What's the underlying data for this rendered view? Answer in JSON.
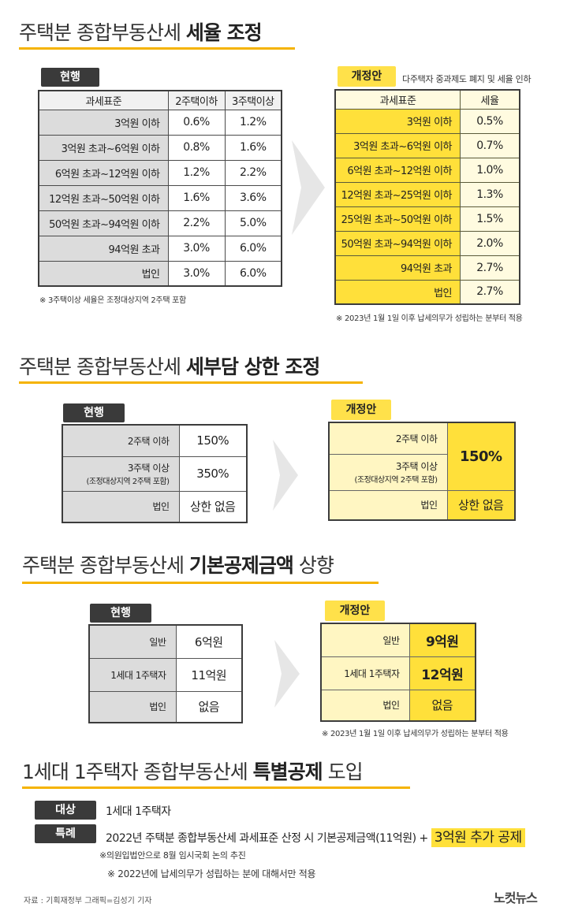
{
  "section1": {
    "title_plain": "주택분 종합부동산세 ",
    "title_bold": "세율 조정",
    "current_label": "현행",
    "proposal_label": "개정안",
    "proposal_desc": "다주택자 중과제도 폐지 및 세율 인하",
    "current_headers": [
      "과세표준",
      "2주택이하",
      "3주택이상"
    ],
    "current_rows": [
      [
        "3억원 이하",
        "0.6%",
        "1.2%"
      ],
      [
        "3억원 초과~6억원 이하",
        "0.8%",
        "1.6%"
      ],
      [
        "6억원 초과~12억원 이하",
        "1.2%",
        "2.2%"
      ],
      [
        "12억원 초과~50억원 이하",
        "1.6%",
        "3.6%"
      ],
      [
        "50억원 초과~94억원 이하",
        "2.2%",
        "5.0%"
      ],
      [
        "94억원 초과",
        "3.0%",
        "6.0%"
      ],
      [
        "법인",
        "3.0%",
        "6.0%"
      ]
    ],
    "current_note": "※ 3주택이상 세율은 조정대상지역 2주택 포함",
    "proposal_headers": [
      "과세표준",
      "세율"
    ],
    "proposal_rows": [
      [
        "3억원 이하",
        "0.5%"
      ],
      [
        "3억원 초과~6억원 이하",
        "0.7%"
      ],
      [
        "6억원 초과~12억원 이하",
        "1.0%"
      ],
      [
        "12억원 초과~25억원 이하",
        "1.3%"
      ],
      [
        "25억원 초과~50억원 이하",
        "1.5%"
      ],
      [
        "50억원 초과~94억원 이하",
        "2.0%"
      ],
      [
        "94억원 초과",
        "2.7%"
      ],
      [
        "법인",
        "2.7%"
      ]
    ],
    "proposal_note": "※ 2023년 1월 1일 이후 납세의무가 성립하는 분부터 적용"
  },
  "section2": {
    "title_plain": "주택분 종합부동산세 ",
    "title_bold": "세부담 상한 조정",
    "current_label": "현행",
    "proposal_label": "개정안",
    "row1_label": "2주택 이하",
    "row1_value": "150%",
    "row2_label": "3주택 이상",
    "row2_sub": "(조정대상지역 2주택 포함)",
    "row2_value": "350%",
    "row3_label": "법인",
    "row3_value": "상한 없음",
    "proposal_merged": "150%",
    "proposal_row3": "상한 없음"
  },
  "section3": {
    "title_plain": "주택분 종합부동산세 ",
    "title_bold": "기본공제금액",
    "title_tail": " 상향",
    "current_label": "현행",
    "proposal_label": "개정안",
    "rows": [
      "일반",
      "1세대 1주택자",
      "법인"
    ],
    "current_values": [
      "6억원",
      "11억원",
      "없음"
    ],
    "proposal_values": [
      "9억원",
      "12억원",
      "없음"
    ],
    "proposal_note": "※ 2023년 1월 1일 이후 납세의무가 성립하는 분부터 적용"
  },
  "section4": {
    "title_plain": "1세대 1주택자 종합부동산세 ",
    "title_bold": "특별공제",
    "title_tail": " 도입",
    "target_label": "대상",
    "target_value": "1세대 1주택자",
    "special_label": "특례",
    "special_text": "2022년 주택분 종합부동산세 과세표준 산정 시 기본공제금액(11억원) + ",
    "special_highlight": "3억원 추가 공제",
    "note1": "※의원입법안으로 8월 임시국회 논의 추진",
    "note2": "※ 2022년에 납세의무가 성립하는 분에 대해서만 적용"
  },
  "footer": {
    "source": "자료 : 기획재정부   그래픽=김성기 기자",
    "logo": "노컷뉴스"
  }
}
